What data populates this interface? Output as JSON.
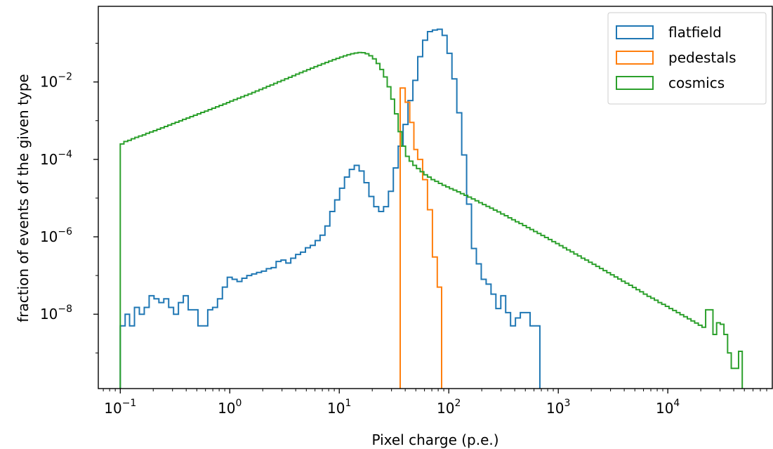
{
  "chart_data": {
    "type": "step-histogram",
    "xlabel": "Pixel charge (p.e.)",
    "ylabel": "fraction of events of the given type",
    "xscale": "log",
    "yscale": "log",
    "xlim": [
      0.063,
      90000
    ],
    "ylim": [
      1.2e-10,
      0.9
    ],
    "x_ticks": [
      {
        "value": 0.1,
        "base": "10",
        "exp": "−1"
      },
      {
        "value": 1,
        "base": "10",
        "exp": "0"
      },
      {
        "value": 10,
        "base": "10",
        "exp": "1"
      },
      {
        "value": 100,
        "base": "10",
        "exp": "2"
      },
      {
        "value": 1000,
        "base": "10",
        "exp": "3"
      },
      {
        "value": 10000,
        "base": "10",
        "exp": "4"
      }
    ],
    "y_ticks": [
      {
        "value": 1e-08,
        "base": "10",
        "exp": "−8"
      },
      {
        "value": 1e-06,
        "base": "10",
        "exp": "−6"
      },
      {
        "value": 0.0001,
        "base": "10",
        "exp": "−4"
      },
      {
        "value": 0.01,
        "base": "10",
        "exp": "−2"
      }
    ],
    "legend": {
      "position": "upper right"
    },
    "series": [
      {
        "name": "flatfield",
        "color": "#1f77b4",
        "points": [
          [
            0.1,
            5e-09
          ],
          [
            0.1108,
            1e-08
          ],
          [
            0.1216,
            5e-09
          ],
          [
            0.1348,
            1.5e-08
          ],
          [
            0.1494,
            1e-08
          ],
          [
            0.1656,
            1.5e-08
          ],
          [
            0.1835,
            3e-08
          ],
          [
            0.2033,
            2.5e-08
          ],
          [
            0.2253,
            2e-08
          ],
          [
            0.2497,
            2.5e-08
          ],
          [
            0.2767,
            1.5e-08
          ],
          [
            0.3067,
            1e-08
          ],
          [
            0.3398,
            2e-08
          ],
          [
            0.3765,
            3e-08
          ],
          [
            0.4173,
            1.3e-08
          ],
          [
            0.4624,
            1.3e-08
          ],
          [
            0.5124,
            5e-09
          ],
          [
            0.5678,
            5e-09
          ],
          [
            0.6292,
            1.3e-08
          ],
          [
            0.6973,
            1.5e-08
          ],
          [
            0.7727,
            2.5e-08
          ],
          [
            0.8563,
            5e-08
          ],
          [
            0.9489,
            9e-08
          ],
          [
            1.0515,
            8e-08
          ],
          [
            1.165,
            7e-08
          ],
          [
            1.291,
            8.5e-08
          ],
          [
            1.431,
            1e-07
          ],
          [
            1.586,
            1.1e-07
          ],
          [
            1.757,
            1.2e-07
          ],
          [
            1.947,
            1.3e-07
          ],
          [
            2.158,
            1.5e-07
          ],
          [
            2.391,
            1.6e-07
          ],
          [
            2.65,
            2.3e-07
          ],
          [
            2.936,
            2.5e-07
          ],
          [
            3.254,
            2.1e-07
          ],
          [
            3.606,
            2.8e-07
          ],
          [
            3.996,
            3.5e-07
          ],
          [
            4.428,
            4e-07
          ],
          [
            4.907,
            5.2e-07
          ],
          [
            5.437,
            6e-07
          ],
          [
            6.025,
            8e-07
          ],
          [
            6.677,
            1.1e-06
          ],
          [
            7.399,
            1.9e-06
          ],
          [
            8.199,
            4.5e-06
          ],
          [
            9.086,
            9e-06
          ],
          [
            10.069,
            1.8e-05
          ],
          [
            11.158,
            3.5e-05
          ],
          [
            12.365,
            5.5e-05
          ],
          [
            13.702,
            7e-05
          ],
          [
            15.184,
            5e-05
          ],
          [
            16.827,
            2.5e-05
          ],
          [
            18.647,
            1.1e-05
          ],
          [
            20.664,
            6e-06
          ],
          [
            22.899,
            4.5e-06
          ],
          [
            25.375,
            6e-06
          ],
          [
            28.12,
            1.5e-05
          ],
          [
            31.161,
            6e-05
          ],
          [
            34.532,
            0.00022
          ],
          [
            38.267,
            0.0008
          ],
          [
            42.406,
            0.0033
          ],
          [
            46.992,
            0.011
          ],
          [
            52.075,
            0.045
          ],
          [
            57.707,
            0.12
          ],
          [
            63.949,
            0.2
          ],
          [
            70.865,
            0.22
          ],
          [
            78.53,
            0.23
          ],
          [
            87.024,
            0.16
          ],
          [
            96.436,
            0.055
          ],
          [
            106.866,
            0.012
          ],
          [
            118.424,
            0.0016
          ],
          [
            131.233,
            0.00013
          ],
          [
            145.426,
            7e-06
          ],
          [
            161.155,
            5e-07
          ],
          [
            178.585,
            2e-07
          ],
          [
            197.9,
            8e-08
          ],
          [
            219.305,
            6e-08
          ],
          [
            243.024,
            3.3e-08
          ],
          [
            269.309,
            1.4e-08
          ],
          [
            298.437,
            3e-08
          ],
          [
            330.716,
            1.1e-08
          ],
          [
            366.485,
            5e-09
          ],
          [
            406.123,
            8e-09
          ],
          [
            450.047,
            1.1e-08
          ],
          [
            498.725,
            1.1e-08
          ],
          [
            552.665,
            5e-09
          ],
          [
            612.438,
            5e-09
          ],
          [
            678.676,
            1e-10
          ]
        ]
      },
      {
        "name": "pedestals",
        "color": "#ff7f0e",
        "points": [
          [
            36.0,
            0.007
          ],
          [
            40.0,
            0.003
          ],
          [
            44.0,
            0.0009
          ],
          [
            48.0,
            0.00018
          ],
          [
            52.0,
            0.0001
          ],
          [
            57.7,
            3e-05
          ],
          [
            63.9,
            5e-06
          ],
          [
            70.9,
            3e-07
          ],
          [
            78.5,
            5e-08
          ],
          [
            86.0,
            1e-10
          ]
        ]
      },
      {
        "name": "cosmics",
        "color": "#2ca02c",
        "points": [
          [
            0.1,
            0.00025
          ],
          [
            0.108,
            0.00029
          ],
          [
            0.117,
            0.00031
          ],
          [
            0.126,
            0.00034
          ],
          [
            0.136,
            0.00037
          ],
          [
            0.147,
            0.0004
          ],
          [
            0.159,
            0.00043
          ],
          [
            0.171,
            0.00047
          ],
          [
            0.185,
            0.00051
          ],
          [
            0.2,
            0.00055
          ],
          [
            0.216,
            0.0006
          ],
          [
            0.233,
            0.00065
          ],
          [
            0.252,
            0.00071
          ],
          [
            0.272,
            0.00077
          ],
          [
            0.294,
            0.00084
          ],
          [
            0.317,
            0.00091
          ],
          [
            0.343,
            0.00099
          ],
          [
            0.37,
            0.00108
          ],
          [
            0.4,
            0.00117
          ],
          [
            0.432,
            0.00127
          ],
          [
            0.466,
            0.00138
          ],
          [
            0.504,
            0.0015
          ],
          [
            0.544,
            0.00163
          ],
          [
            0.588,
            0.00177
          ],
          [
            0.635,
            0.00193
          ],
          [
            0.686,
            0.0021
          ],
          [
            0.741,
            0.00228
          ],
          [
            0.8,
            0.00248
          ],
          [
            0.864,
            0.0027
          ],
          [
            0.933,
            0.00293
          ],
          [
            1.0,
            0.0032
          ],
          [
            1.08,
            0.0035
          ],
          [
            1.17,
            0.0038
          ],
          [
            1.26,
            0.00415
          ],
          [
            1.36,
            0.0045
          ],
          [
            1.47,
            0.0049
          ],
          [
            1.59,
            0.00535
          ],
          [
            1.71,
            0.00585
          ],
          [
            1.85,
            0.0064
          ],
          [
            2.0,
            0.007
          ],
          [
            2.16,
            0.0077
          ],
          [
            2.33,
            0.0084
          ],
          [
            2.52,
            0.0092
          ],
          [
            2.72,
            0.0101
          ],
          [
            2.94,
            0.011
          ],
          [
            3.17,
            0.0121
          ],
          [
            3.43,
            0.0132
          ],
          [
            3.7,
            0.0145
          ],
          [
            4.0,
            0.0159
          ],
          [
            4.32,
            0.0174
          ],
          [
            4.66,
            0.019
          ],
          [
            5.04,
            0.0208
          ],
          [
            5.44,
            0.0227
          ],
          [
            5.88,
            0.0248
          ],
          [
            6.35,
            0.027
          ],
          [
            6.86,
            0.0295
          ],
          [
            7.41,
            0.032
          ],
          [
            8.0,
            0.0348
          ],
          [
            8.64,
            0.0377
          ],
          [
            9.33,
            0.0407
          ],
          [
            10.08,
            0.044
          ],
          [
            10.88,
            0.0472
          ],
          [
            11.75,
            0.0505
          ],
          [
            12.69,
            0.0535
          ],
          [
            13.7,
            0.056
          ],
          [
            14.8,
            0.0575
          ],
          [
            15.98,
            0.057
          ],
          [
            17.26,
            0.0535
          ],
          [
            18.64,
            0.0475
          ],
          [
            20.13,
            0.0395
          ],
          [
            21.74,
            0.03
          ],
          [
            23.48,
            0.021
          ],
          [
            25.36,
            0.0135
          ],
          [
            27.39,
            0.0075
          ],
          [
            29.58,
            0.0036
          ],
          [
            31.95,
            0.0015
          ],
          [
            34.5,
            0.00052
          ],
          [
            37.3,
            0.00022
          ],
          [
            40.3,
            0.00012
          ],
          [
            43.5,
            9e-05
          ],
          [
            47,
            7e-05
          ],
          [
            50.7,
            5.8e-05
          ],
          [
            54.8,
            4.8e-05
          ],
          [
            59.2,
            4e-05
          ],
          [
            63.9,
            3.5e-05
          ],
          [
            69,
            3e-05
          ],
          [
            74.5,
            2.7e-05
          ],
          [
            80.5,
            2.4e-05
          ],
          [
            86.9,
            2.15e-05
          ],
          [
            93.9,
            1.95e-05
          ],
          [
            101.4,
            1.75e-05
          ],
          [
            109.5,
            1.6e-05
          ],
          [
            118.3,
            1.45e-05
          ],
          [
            127.7,
            1.3e-05
          ],
          [
            138,
            1.18e-05
          ],
          [
            149,
            1.06e-05
          ],
          [
            160.9,
            9.5e-06
          ],
          [
            173.8,
            8.5e-06
          ],
          [
            187.7,
            7.6e-06
          ],
          [
            202.7,
            6.8e-06
          ],
          [
            218.9,
            6.1e-06
          ],
          [
            236.4,
            5.5e-06
          ],
          [
            255.3,
            4.9e-06
          ],
          [
            275.7,
            4.4e-06
          ],
          [
            297.8,
            3.9e-06
          ],
          [
            321.6,
            3.5e-06
          ],
          [
            347.3,
            3.1e-06
          ],
          [
            375.1,
            2.75e-06
          ],
          [
            405.1,
            2.45e-06
          ],
          [
            437.5,
            2.2e-06
          ],
          [
            472.5,
            1.95e-06
          ],
          [
            510.3,
            1.73e-06
          ],
          [
            551.1,
            1.54e-06
          ],
          [
            595.2,
            1.37e-06
          ],
          [
            642.8,
            1.22e-06
          ],
          [
            694.2,
            1.08e-06
          ],
          [
            749.7,
            9.6e-07
          ],
          [
            809.7,
            8.5e-07
          ],
          [
            874.5,
            7.5e-07
          ],
          [
            944.4,
            6.7e-07
          ],
          [
            1020,
            5.9e-07
          ],
          [
            1101.6,
            5.2e-07
          ],
          [
            1189.7,
            4.6e-07
          ],
          [
            1284.9,
            4.1e-07
          ],
          [
            1387.7,
            3.6e-07
          ],
          [
            1498.7,
            3.2e-07
          ],
          [
            1618.6,
            2.8e-07
          ],
          [
            1748,
            2.5e-07
          ],
          [
            1887.9,
            2.2e-07
          ],
          [
            2038.9,
            1.95e-07
          ],
          [
            2202,
            1.72e-07
          ],
          [
            2378.2,
            1.52e-07
          ],
          [
            2568.4,
            1.34e-07
          ],
          [
            2773.9,
            1.18e-07
          ],
          [
            2995.8,
            1.04e-07
          ],
          [
            3235.5,
            9.2e-08
          ],
          [
            3494.3,
            8.1e-08
          ],
          [
            3773.8,
            7.1e-08
          ],
          [
            4075.7,
            6.3e-08
          ],
          [
            4401.8,
            5.6e-08
          ],
          [
            4753.9,
            4.9e-08
          ],
          [
            5134.2,
            4.3e-08
          ],
          [
            5545,
            3.8e-08
          ],
          [
            5988.6,
            3.3e-08
          ],
          [
            6467.7,
            2.9e-08
          ],
          [
            6985.1,
            2.6e-08
          ],
          [
            7543.9,
            2.3e-08
          ],
          [
            8147.4,
            2e-08
          ],
          [
            8799.2,
            1.8e-08
          ],
          [
            9503.1,
            1.6e-08
          ],
          [
            10263,
            1.4e-08
          ],
          [
            11084,
            1.25e-08
          ],
          [
            11971,
            1.1e-08
          ],
          [
            12929,
            9.7e-09
          ],
          [
            13963,
            8.6e-09
          ],
          [
            15080,
            7.6e-09
          ],
          [
            16286,
            6.7e-09
          ],
          [
            17589,
            5.9e-09
          ],
          [
            18996,
            5.2e-09
          ],
          [
            20516,
            4.6e-09
          ],
          [
            22157,
            1.3e-08
          ],
          [
            23930,
            1.3e-08
          ],
          [
            25844,
            3e-09
          ],
          [
            27912,
            6e-09
          ],
          [
            30145,
            5.5e-09
          ],
          [
            32556,
            3e-09
          ],
          [
            35161,
            1e-09
          ],
          [
            37974,
            4e-10
          ],
          [
            41012,
            4e-10
          ],
          [
            44293,
            1.1e-09
          ],
          [
            47836,
            1e-10
          ]
        ]
      }
    ]
  }
}
